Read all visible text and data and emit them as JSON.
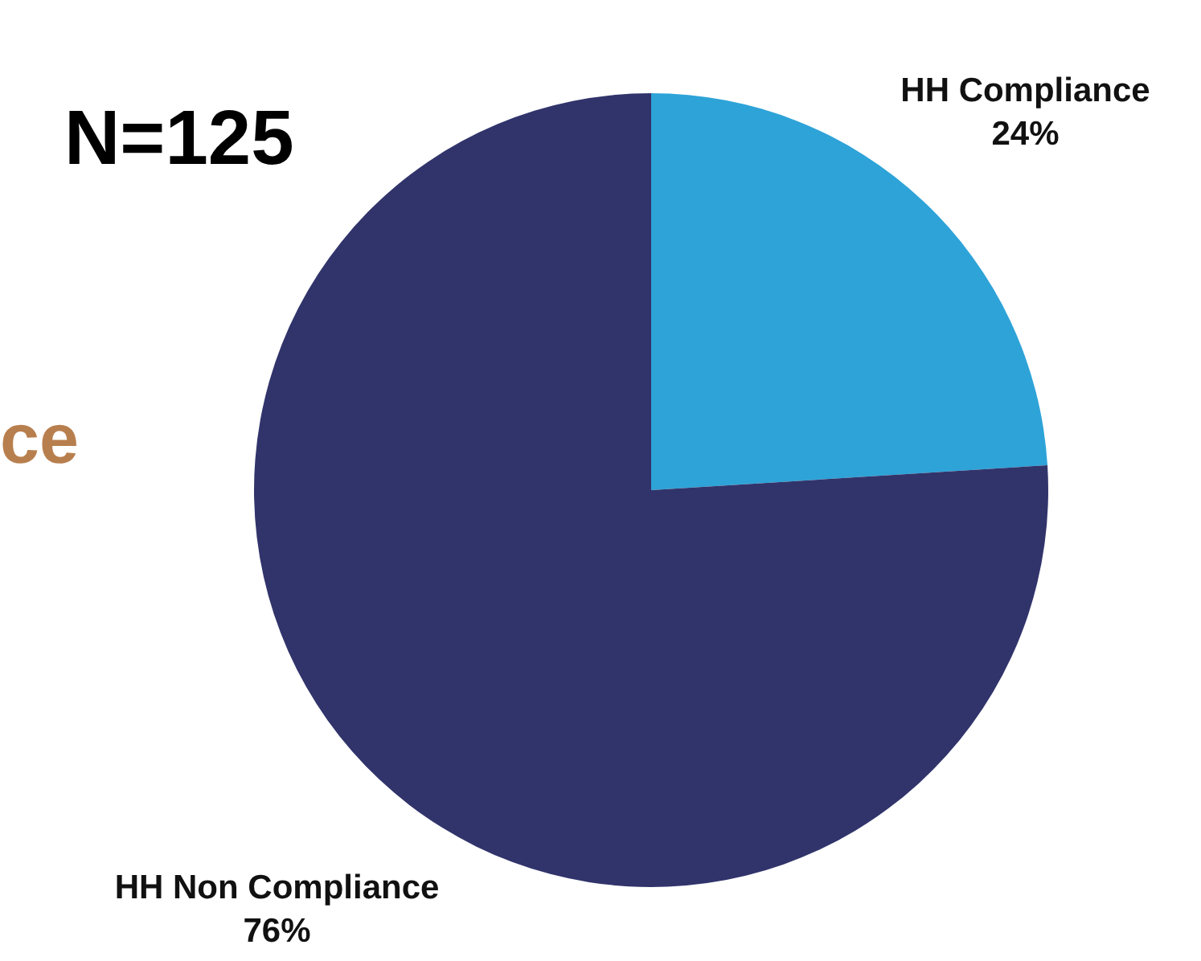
{
  "chart_data": {
    "type": "pie",
    "title": "N=125",
    "annotations": [
      "ce"
    ],
    "categories": [
      "HH Compliance",
      "HH Non Compliance"
    ],
    "values": [
      24,
      76
    ],
    "value_labels": [
      "24%",
      "76%"
    ],
    "colors": [
      "#2ea3d8",
      "#31346b"
    ],
    "legend": false
  }
}
